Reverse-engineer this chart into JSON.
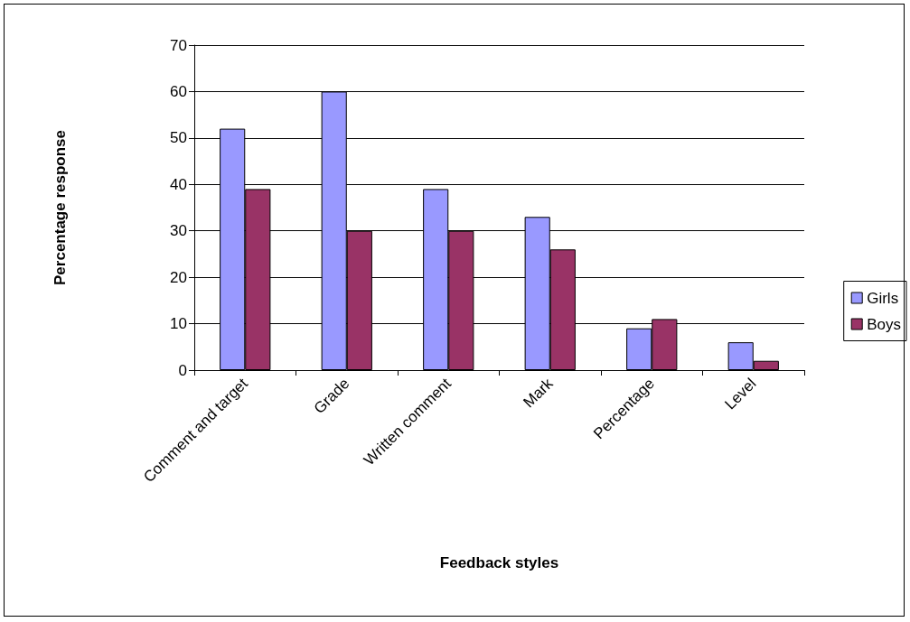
{
  "chart_data": {
    "type": "bar",
    "xlabel": "Feedback styles",
    "ylabel": "Percentage response",
    "categories": [
      "Comment and target",
      "Grade",
      "Written comment",
      "Mark",
      "Percentage",
      "Level"
    ],
    "series": [
      {
        "name": "Girls",
        "color": "#9999ff",
        "values": [
          52,
          60,
          39,
          33,
          9,
          6
        ]
      },
      {
        "name": "Boys",
        "color": "#993366",
        "values": [
          39,
          30,
          30,
          26,
          11,
          2
        ]
      }
    ],
    "ylim": [
      0,
      70
    ],
    "yticks": [
      0,
      10,
      20,
      30,
      40,
      50,
      60,
      70
    ],
    "grid": "y",
    "legend": "right"
  }
}
